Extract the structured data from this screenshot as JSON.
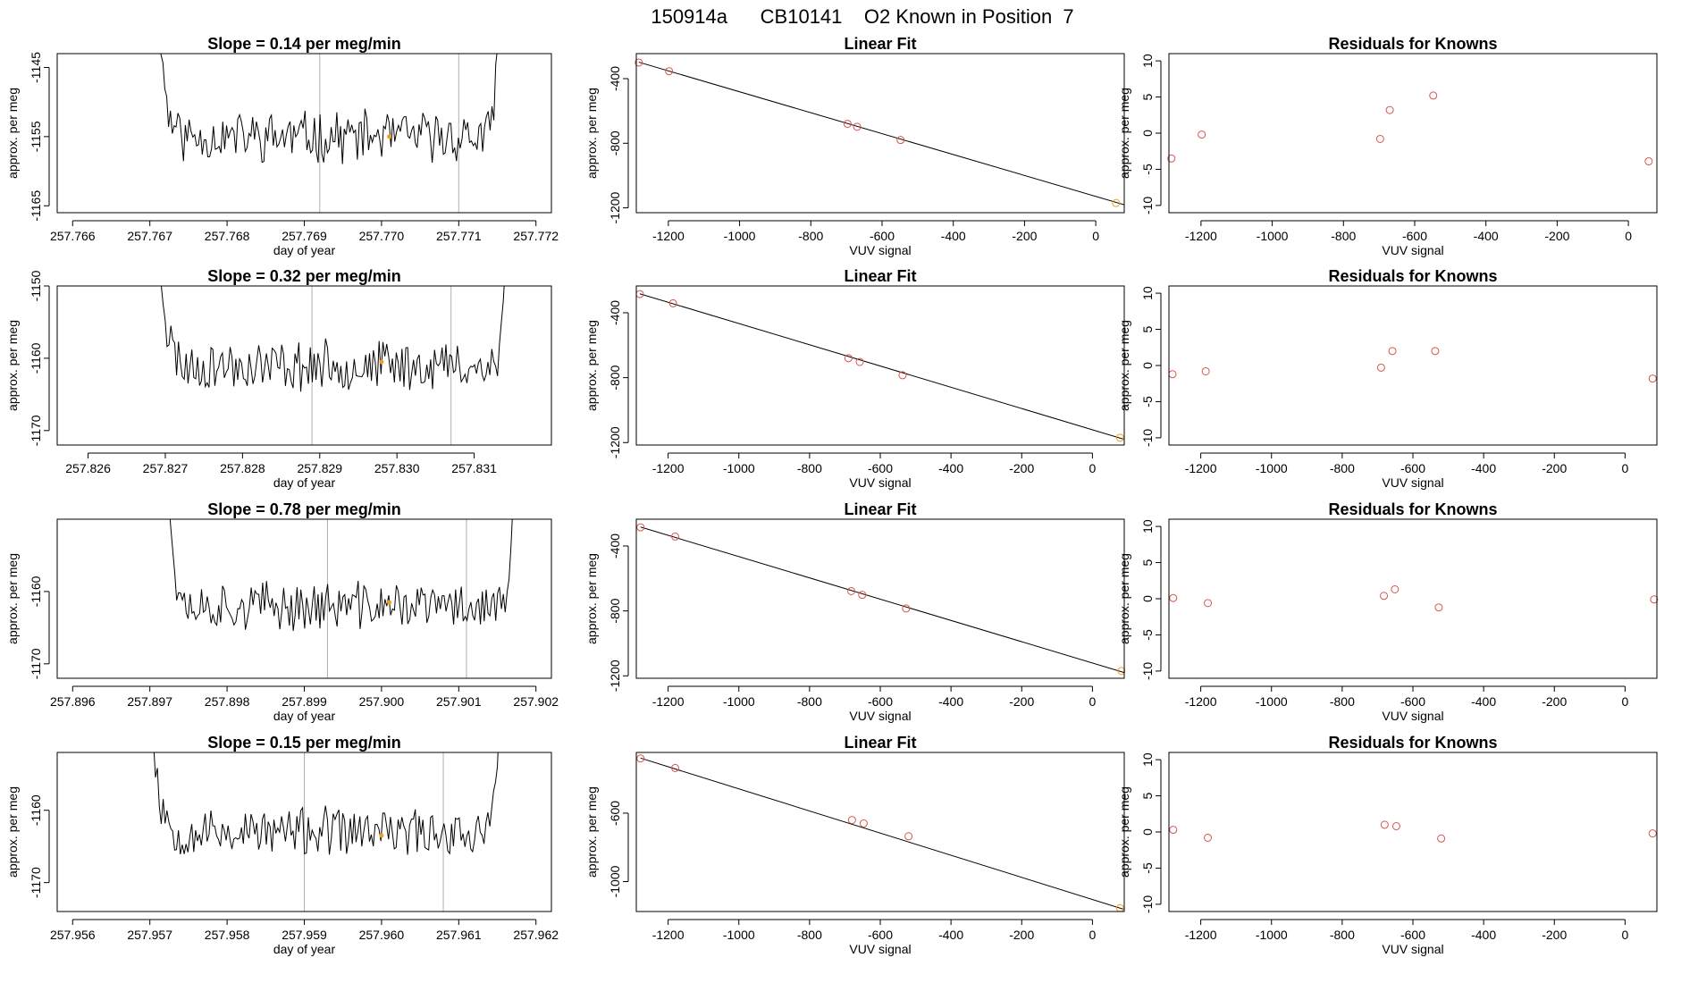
{
  "figure_title": "150914a      CB10141    O2 Known in Position  7",
  "colors": {
    "series": "#000000",
    "point": "#d9534f",
    "highlight": "#f0a020",
    "vline": "#b0b0b0"
  },
  "chart_data": [
    {
      "type": "line",
      "row": 0,
      "title": "Slope =  0.14  per meg/min",
      "xlabel": "day of year",
      "ylabel": "approx. per meg",
      "xlim": [
        257.7658,
        257.7722
      ],
      "ylim": [
        -1166,
        -1143
      ],
      "xticks": [
        257.766,
        257.767,
        257.768,
        257.769,
        257.77,
        257.771,
        257.772
      ],
      "xtick_labels": [
        "257.766",
        "257.767",
        "257.768",
        "257.769",
        "257.770",
        "257.771",
        "257.772"
      ],
      "yticks": [
        -1165,
        -1155,
        -1145
      ],
      "ytick_labels": [
        "-1165",
        "-1155",
        "-1145"
      ],
      "vlines": [
        257.7692,
        257.771
      ],
      "highlight": [
        257.7701,
        -1155.0
      ],
      "series": {
        "start": 257.767,
        "end": 257.7716,
        "base": -1155,
        "noise": 3.2,
        "seed": 11
      }
    },
    {
      "type": "scatter",
      "row": 0,
      "title": "Linear Fit",
      "xlabel": "VUV signal",
      "ylabel": "approx. per meg",
      "xlim": [
        -1290,
        80
      ],
      "ylim": [
        -1230,
        -245
      ],
      "xticks": [
        -1200,
        -1000,
        -800,
        -600,
        -400,
        -200,
        0
      ],
      "xtick_labels": [
        "-1200",
        "-1000",
        "-800",
        "-600",
        "-400",
        "-200",
        "0"
      ],
      "yticks": [
        -1200,
        -800,
        -400
      ],
      "ytick_labels": [
        "-1200",
        "-800",
        "-400"
      ],
      "points": [
        [
          -1283,
          -300
        ],
        [
          -1198,
          -354
        ],
        [
          -697,
          -680
        ],
        [
          -670,
          -698
        ],
        [
          -548,
          -780
        ],
        [
          57,
          -1170
        ]
      ],
      "fit_line": [
        [
          -1283,
          -298
        ],
        [
          80,
          -1181
        ]
      ]
    },
    {
      "type": "scatter",
      "row": 0,
      "title": "Residuals for Knowns",
      "xlabel": "VUV signal",
      "ylabel": "approx. per meg",
      "xlim": [
        -1290,
        80
      ],
      "ylim": [
        -11,
        11
      ],
      "xticks": [
        -1200,
        -1000,
        -800,
        -600,
        -400,
        -200,
        0
      ],
      "xtick_labels": [
        "-1200",
        "-1000",
        "-800",
        "-600",
        "-400",
        "-200",
        "0"
      ],
      "yticks": [
        -10,
        -5,
        0,
        5,
        10
      ],
      "ytick_labels": [
        "-10",
        "-5",
        "0",
        "5",
        "10"
      ],
      "points": [
        [
          -1283,
          -3.5
        ],
        [
          -1198,
          -0.2
        ],
        [
          -697,
          -0.8
        ],
        [
          -670,
          3.2
        ],
        [
          -548,
          5.2
        ],
        [
          57,
          -3.9
        ]
      ]
    },
    {
      "type": "line",
      "row": 1,
      "title": "Slope =  0.32  per meg/min",
      "xlabel": "day of year",
      "ylabel": "approx. per meg",
      "xlim": [
        257.8256,
        257.832
      ],
      "ylim": [
        -1172,
        -1150
      ],
      "xticks": [
        257.826,
        257.827,
        257.828,
        257.829,
        257.83,
        257.831
      ],
      "xtick_labels": [
        "257.826",
        "257.827",
        "257.828",
        "257.829",
        "257.830",
        "257.831"
      ],
      "yticks": [
        -1170,
        -1160,
        -1150
      ],
      "ytick_labels": [
        "-1170",
        "-1160",
        "-1150"
      ],
      "vlines": [
        257.8289,
        257.8307
      ],
      "highlight": [
        257.8298,
        -1160.5
      ],
      "series": {
        "start": 257.8268,
        "end": 257.8315,
        "base": -1161,
        "noise": 3.0,
        "seed": 23
      }
    },
    {
      "type": "scatter",
      "row": 1,
      "title": "Linear Fit",
      "xlabel": "VUV signal",
      "ylabel": "approx. per meg",
      "xlim": [
        -1290,
        90
      ],
      "ylim": [
        -1215,
        -235
      ],
      "xticks": [
        -1200,
        -1000,
        -800,
        -600,
        -400,
        -200,
        0
      ],
      "xtick_labels": [
        "-1200",
        "-1000",
        "-800",
        "-600",
        "-400",
        "-200",
        "0"
      ],
      "yticks": [
        -1200,
        -800,
        -400
      ],
      "ytick_labels": [
        "-1200",
        "-800",
        "-400"
      ],
      "points": [
        [
          -1280,
          -285
        ],
        [
          -1186,
          -342
        ],
        [
          -690,
          -680
        ],
        [
          -658,
          -703
        ],
        [
          -537,
          -785
        ],
        [
          78,
          -1170
        ]
      ],
      "fit_line": [
        [
          -1280,
          -283
        ],
        [
          90,
          -1180
        ]
      ]
    },
    {
      "type": "scatter",
      "row": 1,
      "title": "Residuals for Knowns",
      "xlabel": "VUV signal",
      "ylabel": "approx. per meg",
      "xlim": [
        -1290,
        90
      ],
      "ylim": [
        -11,
        11
      ],
      "xticks": [
        -1200,
        -1000,
        -800,
        -600,
        -400,
        -200,
        0
      ],
      "xtick_labels": [
        "-1200",
        "-1000",
        "-800",
        "-600",
        "-400",
        "-200",
        "0"
      ],
      "yticks": [
        -10,
        -5,
        0,
        5,
        10
      ],
      "ytick_labels": [
        "-10",
        "-5",
        "0",
        "5",
        "10"
      ],
      "points": [
        [
          -1280,
          -1.2
        ],
        [
          -1186,
          -0.8
        ],
        [
          -690,
          -0.3
        ],
        [
          -658,
          2.0
        ],
        [
          -537,
          2.0
        ],
        [
          78,
          -1.8
        ]
      ]
    },
    {
      "type": "line",
      "row": 2,
      "title": "Slope =  0.78  per meg/min",
      "xlabel": "day of year",
      "ylabel": "approx. per meg",
      "xlim": [
        257.8958,
        257.9022
      ],
      "ylim": [
        -1172,
        -1150
      ],
      "xticks": [
        257.896,
        257.897,
        257.898,
        257.899,
        257.9,
        257.901,
        257.902
      ],
      "xtick_labels": [
        "257.896",
        "257.897",
        "257.898",
        "257.899",
        "257.900",
        "257.901",
        "257.902"
      ],
      "yticks": [
        -1170,
        -1160
      ],
      "ytick_labels": [
        "-1170",
        "-1160"
      ],
      "vlines": [
        257.8993,
        257.9011
      ],
      "highlight": [
        257.9001,
        -1161.5
      ],
      "series": {
        "start": 257.8971,
        "end": 257.9018,
        "base": -1162,
        "noise": 2.9,
        "seed": 37
      }
    },
    {
      "type": "scatter",
      "row": 2,
      "title": "Linear Fit",
      "xlabel": "VUV signal",
      "ylabel": "approx. per meg",
      "xlim": [
        -1290,
        90
      ],
      "ylim": [
        -1215,
        -235
      ],
      "xticks": [
        -1200,
        -1000,
        -800,
        -600,
        -400,
        -200,
        0
      ],
      "xtick_labels": [
        "-1200",
        "-1000",
        "-800",
        "-600",
        "-400",
        "-200",
        "0"
      ],
      "yticks": [
        -1200,
        -800,
        -400
      ],
      "ytick_labels": [
        "-1200",
        "-800",
        "-400"
      ],
      "points": [
        [
          -1278,
          -285
        ],
        [
          -1180,
          -342
        ],
        [
          -682,
          -678
        ],
        [
          -651,
          -701
        ],
        [
          -527,
          -785
        ],
        [
          82,
          -1170
        ]
      ],
      "fit_line": [
        [
          -1278,
          -283
        ],
        [
          90,
          -1180
        ]
      ]
    },
    {
      "type": "scatter",
      "row": 2,
      "title": "Residuals for Knowns",
      "xlabel": "VUV signal",
      "ylabel": "approx. per meg",
      "xlim": [
        -1290,
        90
      ],
      "ylim": [
        -11,
        11
      ],
      "xticks": [
        -1200,
        -1000,
        -800,
        -600,
        -400,
        -200,
        0
      ],
      "xtick_labels": [
        "-1200",
        "-1000",
        "-800",
        "-600",
        "-400",
        "-200",
        "0"
      ],
      "yticks": [
        -10,
        -5,
        0,
        5,
        10
      ],
      "ytick_labels": [
        "-10",
        "-5",
        "0",
        "5",
        "10"
      ],
      "points": [
        [
          -1278,
          0.1
        ],
        [
          -1180,
          -0.6
        ],
        [
          -682,
          0.4
        ],
        [
          -651,
          1.3
        ],
        [
          -527,
          -1.2
        ],
        [
          82,
          -0.1
        ]
      ]
    },
    {
      "type": "line",
      "row": 3,
      "title": "Slope =  0.15  per meg/min",
      "xlabel": "day of year",
      "ylabel": "approx. per meg",
      "xlim": [
        257.9558,
        257.9622
      ],
      "ylim": [
        -1174,
        -1152
      ],
      "xticks": [
        257.956,
        257.957,
        257.958,
        257.959,
        257.96,
        257.961,
        257.962
      ],
      "xtick_labels": [
        "257.956",
        "257.957",
        "257.958",
        "257.959",
        "257.960",
        "257.961",
        "257.962"
      ],
      "yticks": [
        -1170,
        -1160
      ],
      "ytick_labels": [
        "-1170",
        "-1160"
      ],
      "vlines": [
        257.959,
        257.9608
      ],
      "highlight": [
        257.96,
        -1163.5
      ],
      "series": {
        "start": 257.9569,
        "end": 257.9616,
        "base": -1163,
        "noise": 2.9,
        "seed": 53
      }
    },
    {
      "type": "scatter",
      "row": 3,
      "title": "Linear Fit",
      "xlabel": "VUV signal",
      "ylabel": "approx. per meg",
      "xlim": [
        -1290,
        90
      ],
      "ylim": [
        -1175,
        -245
      ],
      "xticks": [
        -1200,
        -1000,
        -800,
        -600,
        -400,
        -200,
        0
      ],
      "xtick_labels": [
        "-1200",
        "-1000",
        "-800",
        "-600",
        "-400",
        "-200",
        "0"
      ],
      "yticks": [
        -1000,
        -600
      ],
      "ytick_labels": [
        "-1000",
        "-600"
      ],
      "points": [
        [
          -1278,
          -280
        ],
        [
          -1180,
          -336
        ],
        [
          -680,
          -640
        ],
        [
          -647,
          -660
        ],
        [
          -520,
          -735
        ],
        [
          78,
          -1155
        ]
      ],
      "fit_line": [
        [
          -1278,
          -278
        ],
        [
          90,
          -1163
        ]
      ]
    },
    {
      "type": "scatter",
      "row": 3,
      "title": "Residuals for Knowns",
      "xlabel": "VUV signal",
      "ylabel": "approx. per meg",
      "xlim": [
        -1290,
        90
      ],
      "ylim": [
        -11,
        11
      ],
      "xticks": [
        -1200,
        -1000,
        -800,
        -600,
        -400,
        -200,
        0
      ],
      "xtick_labels": [
        "-1200",
        "-1000",
        "-800",
        "-600",
        "-400",
        "-200",
        "0"
      ],
      "yticks": [
        -10,
        -5,
        0,
        5,
        10
      ],
      "ytick_labels": [
        "-10",
        "-5",
        "0",
        "5",
        "10"
      ],
      "points": [
        [
          -1278,
          0.3
        ],
        [
          -1180,
          -0.8
        ],
        [
          -680,
          1.0
        ],
        [
          -647,
          0.8
        ],
        [
          -520,
          -0.9
        ],
        [
          78,
          -0.2
        ]
      ]
    }
  ]
}
